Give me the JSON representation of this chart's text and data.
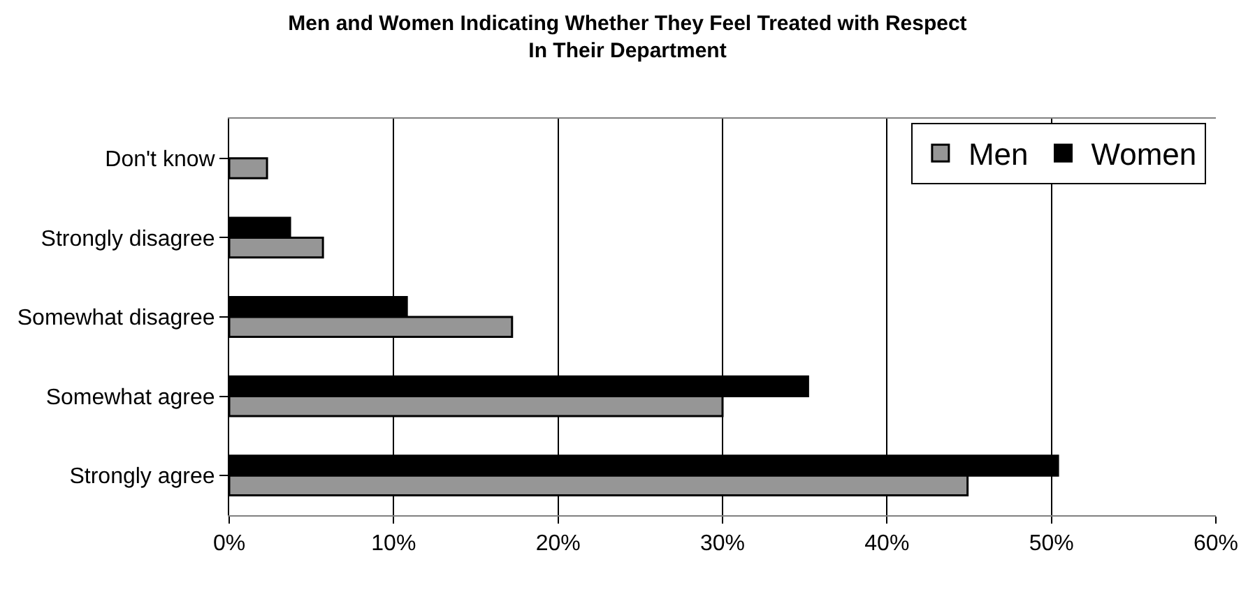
{
  "chart_data": {
    "type": "bar",
    "orientation": "horizontal",
    "title": "Men and Women Indicating Whether They Feel Treated with Respect\nIn Their Department",
    "categories": [
      "Don't know",
      "Strongly disagree",
      "Somewhat disagree",
      "Somewhat agree",
      "Strongly agree"
    ],
    "series": [
      {
        "name": "Men",
        "color": "#969696",
        "values": [
          2.3,
          5.7,
          17.2,
          30.0,
          44.9
        ]
      },
      {
        "name": "Women",
        "color": "#000000",
        "values": [
          null,
          3.7,
          10.8,
          35.2,
          50.4
        ]
      }
    ],
    "xlim": [
      0,
      60
    ],
    "xticks": [
      {
        "value": 0,
        "label": "0%"
      },
      {
        "value": 10,
        "label": "10%"
      },
      {
        "value": 20,
        "label": "20%"
      },
      {
        "value": 30,
        "label": "30%"
      },
      {
        "value": 40,
        "label": "40%"
      },
      {
        "value": 50,
        "label": "50%"
      },
      {
        "value": 60,
        "label": "60%"
      }
    ],
    "grid": "x",
    "legend": "top right"
  }
}
